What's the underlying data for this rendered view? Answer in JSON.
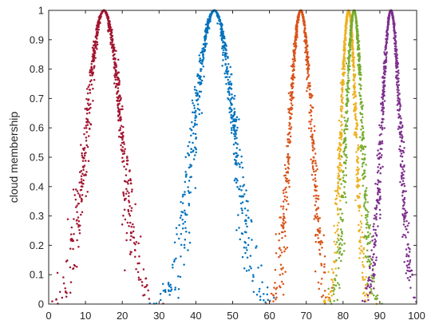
{
  "chart_data": {
    "type": "scatter",
    "title": "",
    "xlabel": "",
    "ylabel": "cloud membership",
    "xlim": [
      0,
      100
    ],
    "ylim": [
      0,
      1
    ],
    "xticks": [
      0,
      10,
      20,
      30,
      40,
      50,
      60,
      70,
      80,
      90,
      100
    ],
    "yticks": [
      0,
      0.1,
      0.2,
      0.3,
      0.4,
      0.5,
      0.6,
      0.7,
      0.8,
      0.9,
      1
    ],
    "xtick_labels": [
      "0",
      "10",
      "20",
      "30",
      "40",
      "50",
      "60",
      "70",
      "80",
      "90",
      "100"
    ],
    "ytick_labels": [
      "0",
      "0.1",
      "0.2",
      "0.3",
      "0.4",
      "0.5",
      "0.6",
      "0.7",
      "0.8",
      "0.9",
      "1"
    ],
    "grid": false,
    "legend": "none",
    "series": [
      {
        "color": "#A2142F",
        "peak_x": 15,
        "support": [
          1,
          30
        ]
      },
      {
        "color": "#0072BD",
        "peak_x": 45,
        "support": [
          31,
          62
        ]
      },
      {
        "color": "#D95319",
        "peak_x": 68.5,
        "support": [
          59,
          77
        ]
      },
      {
        "color": "#EDB120",
        "peak_x": 81.5,
        "support": [
          75,
          88
        ]
      },
      {
        "color": "#77AC30",
        "peak_x": 83,
        "support": [
          76,
          90
        ]
      },
      {
        "color": "#7E2F8E",
        "peak_x": 93,
        "support": [
          85,
          100
        ]
      }
    ]
  }
}
